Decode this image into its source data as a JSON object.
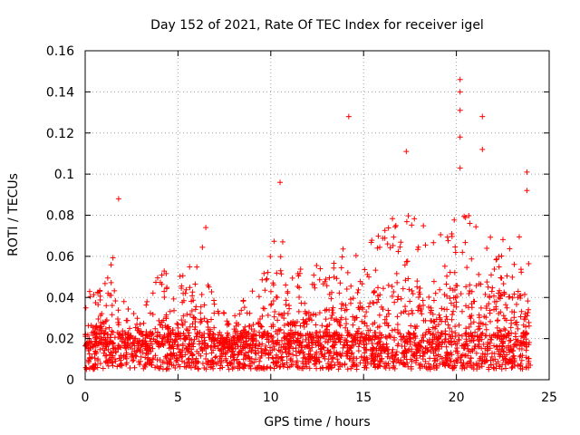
{
  "chart_data": {
    "type": "scatter",
    "title": "Day 152 of 2021, Rate Of TEC Index for receiver igel",
    "xlabel": "GPS time / hours",
    "ylabel": "ROTI / TECUs",
    "xlim": [
      0,
      25
    ],
    "ylim": [
      0,
      0.16
    ],
    "x_ticks": [
      0,
      5,
      10,
      15,
      20,
      25
    ],
    "x_tick_labels": [
      "0",
      "5",
      "10",
      "15",
      "20",
      "25"
    ],
    "y_ticks": [
      0,
      0.02,
      0.04,
      0.06,
      0.08,
      0.1,
      0.12,
      0.14,
      0.16
    ],
    "y_tick_labels": [
      "0",
      "0.02",
      "0.04",
      "0.06",
      "0.08",
      "0.1",
      "0.12",
      "0.14",
      "0.16"
    ],
    "grid": true,
    "marker": "+",
    "color": "#ff0000",
    "notable_points": [
      {
        "x": 1.8,
        "y": 0.088
      },
      {
        "x": 6.5,
        "y": 0.074
      },
      {
        "x": 10.5,
        "y": 0.096
      },
      {
        "x": 14.2,
        "y": 0.128
      },
      {
        "x": 17.3,
        "y": 0.111
      },
      {
        "x": 20.2,
        "y": 0.146
      },
      {
        "x": 20.2,
        "y": 0.14
      },
      {
        "x": 20.2,
        "y": 0.131
      },
      {
        "x": 20.2,
        "y": 0.118
      },
      {
        "x": 20.2,
        "y": 0.103
      },
      {
        "x": 21.4,
        "y": 0.128
      },
      {
        "x": 21.4,
        "y": 0.112
      },
      {
        "x": 23.8,
        "y": 0.101
      },
      {
        "x": 23.8,
        "y": 0.092
      }
    ],
    "envelope_note": "Dense cloud of thousands of points between 0.005 and ~0.05 TECU over 0–24 h; points generated from this envelope (hour, typical upper value).",
    "envelope": [
      [
        0.0,
        0.045
      ],
      [
        1.0,
        0.045
      ],
      [
        1.5,
        0.06
      ],
      [
        2.0,
        0.04
      ],
      [
        3.0,
        0.03
      ],
      [
        4.0,
        0.055
      ],
      [
        5.0,
        0.05
      ],
      [
        6.0,
        0.06
      ],
      [
        6.5,
        0.07
      ],
      [
        7.0,
        0.035
      ],
      [
        8.0,
        0.03
      ],
      [
        9.0,
        0.05
      ],
      [
        10.0,
        0.065
      ],
      [
        10.5,
        0.08
      ],
      [
        11.0,
        0.05
      ],
      [
        12.0,
        0.06
      ],
      [
        13.0,
        0.055
      ],
      [
        14.0,
        0.07
      ],
      [
        15.0,
        0.07
      ],
      [
        16.0,
        0.075
      ],
      [
        17.0,
        0.085
      ],
      [
        18.0,
        0.08
      ],
      [
        19.0,
        0.07
      ],
      [
        20.0,
        0.08
      ],
      [
        21.0,
        0.08
      ],
      [
        22.0,
        0.075
      ],
      [
        23.0,
        0.07
      ],
      [
        24.0,
        0.075
      ]
    ],
    "point_count": 2600
  }
}
